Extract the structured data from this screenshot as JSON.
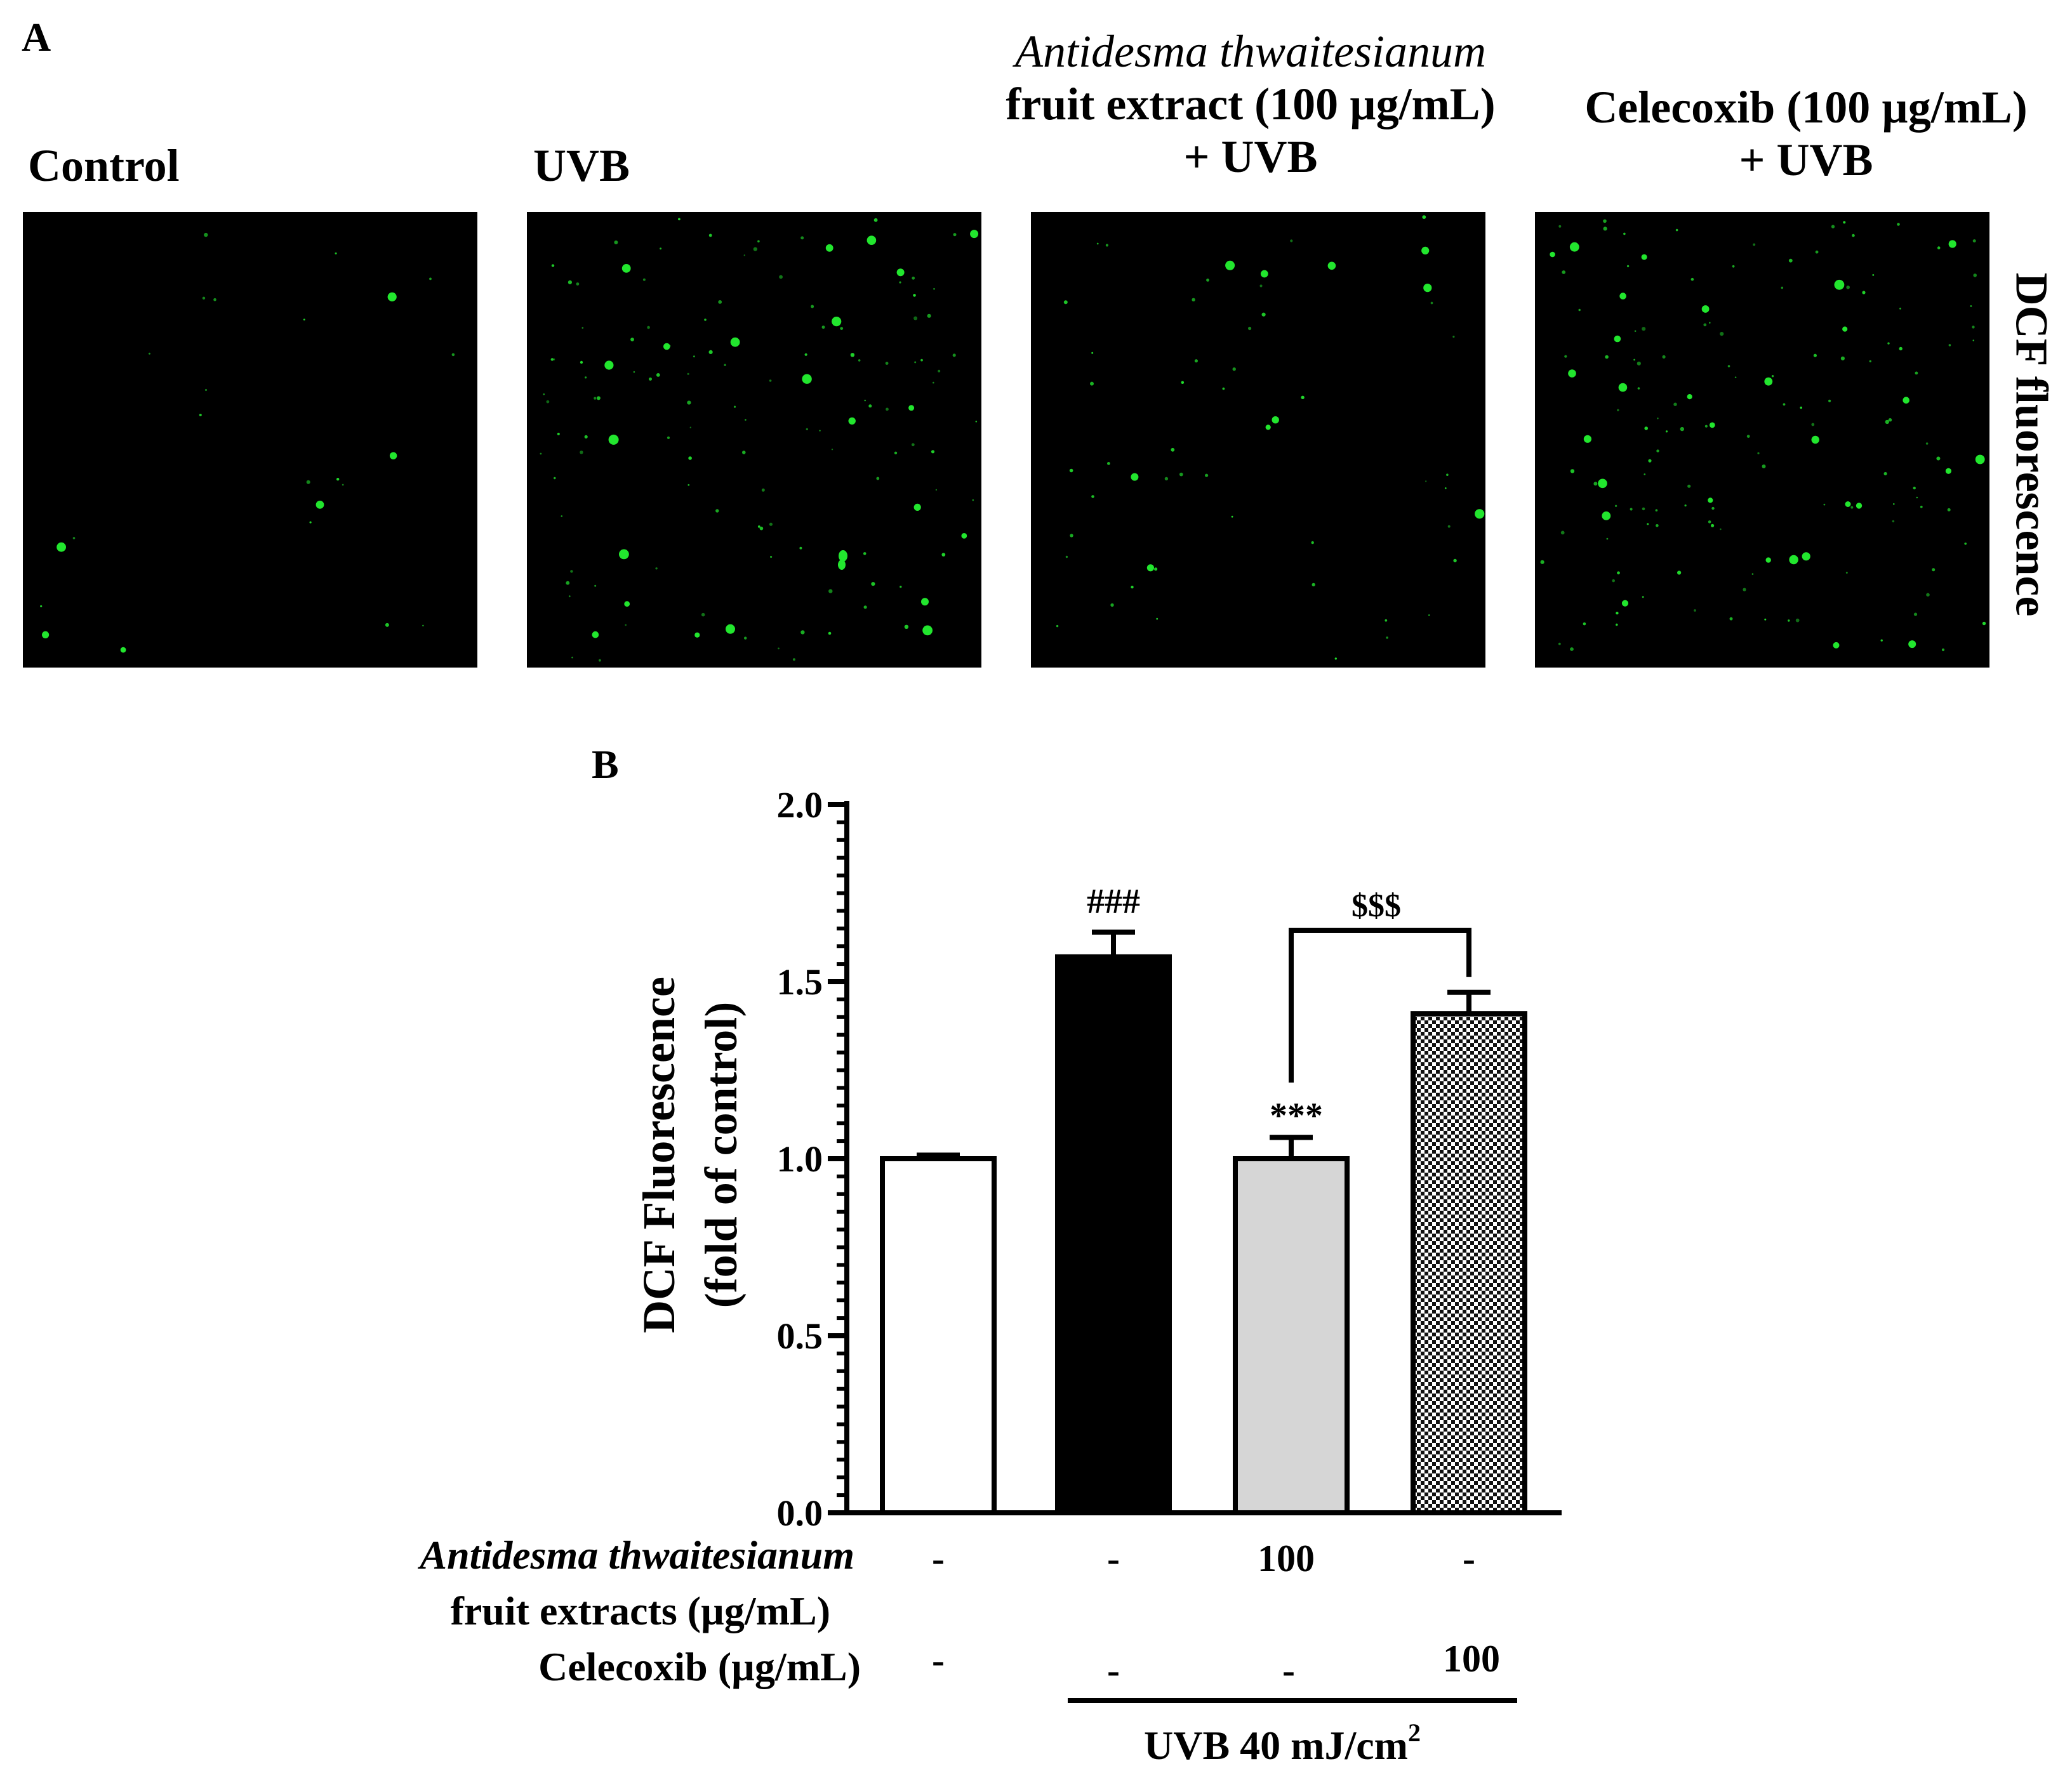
{
  "panel_a": {
    "letter": "A",
    "titles": {
      "control": "Control",
      "uvb": "UVB",
      "extract_line1": "Antidesma thwaitesianum",
      "extract_line2": "fruit extract (100 µg/mL)",
      "extract_line3": "+ UVB",
      "celecoxib_line1": "Celecoxib (100 µg/mL)",
      "celecoxib_line2": "+ UVB"
    },
    "side_label": "DCF fluorescence",
    "fluorescence_color": "#22e62e"
  },
  "chart_data": {
    "panel_letter": "B",
    "type": "bar",
    "categories": [
      "Control",
      "UVB",
      "Antidesma thwaitesianum 100 + UVB",
      "Celecoxib 100 + UVB"
    ],
    "values": [
      1.0,
      1.57,
      1.0,
      1.41
    ],
    "errors": [
      0.01,
      0.07,
      0.06,
      0.06
    ],
    "fills": [
      "#ffffff",
      "#000000",
      "#d6d6d6",
      "checker"
    ],
    "ylabel_line1": "DCF Fluorescence",
    "ylabel_line2": "(fold of control)",
    "ylim": [
      0,
      2.0
    ],
    "yticks": [
      "0.0",
      "0.5",
      "1.0",
      "1.5",
      "2.0"
    ],
    "annotations": {
      "bar2": "###",
      "bar3": "***",
      "bracket_3_4": "$$$"
    },
    "treatment_rows": [
      {
        "label_line1": "Antidesma thwaitesianum",
        "label_line2": "fruit extracts (µg/mL)",
        "values": [
          "-",
          "-",
          "100",
          "-"
        ]
      },
      {
        "label_line1": "Celecoxib (µg/mL)",
        "values": [
          "-",
          "-",
          "-",
          "100"
        ]
      }
    ],
    "uvb_label": "UVB 40 mJ/cm",
    "uvb_superscript": "2"
  }
}
